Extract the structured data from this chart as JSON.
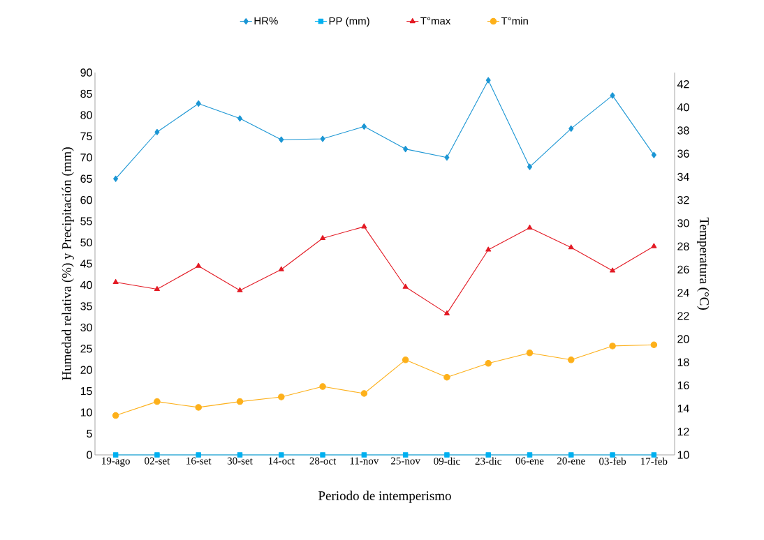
{
  "chart_data": {
    "type": "line",
    "xlabel": "Periodo de intemperismo",
    "ylabel": "Humedad relativa (%) y Precipitación (mm)",
    "y2label": "Temperatura (°C)",
    "categories": [
      "19-ago",
      "02-set",
      "16-set",
      "30-set",
      "14-oct",
      "28-oct",
      "11-nov",
      "25-nov",
      "09-dic",
      "23-dic",
      "06-ene",
      "20-ene",
      "03-feb",
      "17-feb"
    ],
    "series": [
      {
        "name": "HR%",
        "color": "#1b96d4",
        "marker": "diamond",
        "values": [
          65,
          76,
          82.7,
          79.2,
          74.2,
          74.4,
          77.3,
          72,
          70,
          88.2,
          67.8,
          76.8,
          84.6,
          70.6
        ]
      },
      {
        "name": "PP (mm)",
        "color": "#00b0f0",
        "marker": "square",
        "values": [
          0,
          0,
          0,
          0,
          0,
          0,
          0,
          0,
          0,
          0,
          0,
          0,
          0,
          0
        ]
      },
      {
        "name": "T°max",
        "color": "#e31a24",
        "marker": "triangle",
        "axis": "y2",
        "values": [
          24.9,
          24.3,
          26.3,
          24.2,
          26.0,
          28.7,
          29.7,
          24.5,
          22.2,
          27.7,
          29.6,
          27.9,
          25.9,
          28.0
        ]
      },
      {
        "name": "T°min",
        "color": "#fdb01a",
        "marker": "circle",
        "axis": "y2",
        "values": [
          13.4,
          14.6,
          14.1,
          14.6,
          15.0,
          15.9,
          15.3,
          18.2,
          16.7,
          17.9,
          18.8,
          18.2,
          19.4,
          19.5
        ]
      }
    ],
    "ylim": [
      0,
      90
    ],
    "yticks": [
      0,
      5,
      10,
      15,
      20,
      25,
      30,
      35,
      40,
      45,
      50,
      55,
      60,
      65,
      70,
      75,
      80,
      85,
      90
    ],
    "y2lim": [
      10,
      43
    ],
    "y2ticks": [
      10,
      12,
      14,
      16,
      18,
      20,
      22,
      24,
      26,
      28,
      30,
      32,
      34,
      36,
      38,
      40,
      42
    ],
    "grid": false,
    "legend": "top"
  }
}
